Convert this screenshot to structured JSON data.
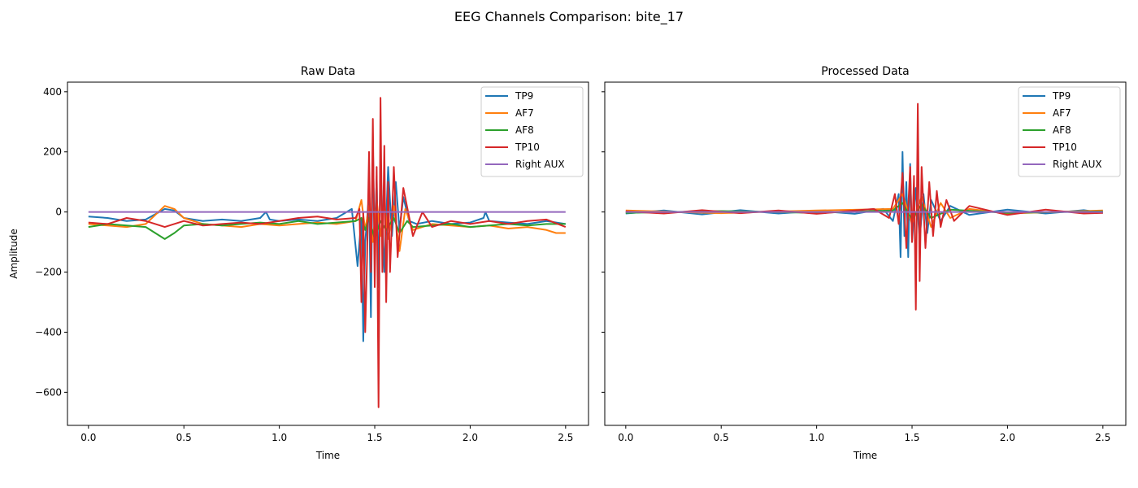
{
  "suptitle": "EEG Channels Comparison: bite_17",
  "colors": {
    "TP9": "#1f77b4",
    "AF7": "#ff7f0e",
    "AF8": "#2ca02c",
    "TP10": "#d62728",
    "Right AUX": "#9467bd"
  },
  "chart_data": [
    {
      "type": "line",
      "title": "Raw Data",
      "xlabel": "Time",
      "ylabel": "Amplitude",
      "xlim": [
        -0.11,
        2.62
      ],
      "ylim": [
        -710,
        432
      ],
      "xticks": [
        0.0,
        0.5,
        1.0,
        1.5,
        2.0,
        2.5
      ],
      "xtick_labels": [
        "0.0",
        "0.5",
        "1.0",
        "1.5",
        "2.0",
        "2.5"
      ],
      "yticks": [
        400,
        200,
        0,
        -200,
        -400,
        -600
      ],
      "ytick_labels": [
        "400",
        "200",
        "0",
        "−200",
        "−400",
        "−600"
      ],
      "legend": [
        "TP9",
        "AF7",
        "AF8",
        "TP10",
        "Right AUX"
      ],
      "legend_loc": "upper right",
      "series": [
        {
          "name": "TP9",
          "color": "#1f77b4",
          "x": [
            0.0,
            0.1,
            0.2,
            0.3,
            0.4,
            0.45,
            0.5,
            0.6,
            0.7,
            0.8,
            0.9,
            0.93,
            0.95,
            1.0,
            1.1,
            1.2,
            1.3,
            1.38,
            1.41,
            1.43,
            1.44,
            1.45,
            1.47,
            1.48,
            1.49,
            1.5,
            1.51,
            1.52,
            1.53,
            1.55,
            1.57,
            1.59,
            1.61,
            1.63,
            1.65,
            1.68,
            1.72,
            1.8,
            1.9,
            2.0,
            2.07,
            2.08,
            2.1,
            2.2,
            2.3,
            2.4,
            2.5
          ],
          "y": [
            -15,
            -20,
            -30,
            -25,
            10,
            5,
            -20,
            -30,
            -25,
            -30,
            -20,
            0,
            -25,
            -30,
            -25,
            -30,
            -20,
            10,
            -180,
            -20,
            -430,
            -100,
            60,
            -350,
            230,
            -100,
            120,
            -250,
            170,
            -200,
            150,
            -80,
            100,
            -60,
            50,
            -30,
            -40,
            -30,
            -40,
            -35,
            -20,
            0,
            -30,
            -35,
            -40,
            -30,
            -40
          ]
        },
        {
          "name": "AF7",
          "color": "#ff7f0e",
          "x": [
            0.0,
            0.1,
            0.2,
            0.3,
            0.35,
            0.4,
            0.45,
            0.5,
            0.6,
            0.7,
            0.8,
            0.9,
            1.0,
            1.1,
            1.2,
            1.3,
            1.4,
            1.43,
            1.45,
            1.47,
            1.49,
            1.51,
            1.53,
            1.55,
            1.57,
            1.6,
            1.63,
            1.66,
            1.7,
            1.75,
            1.8,
            1.9,
            2.0,
            2.1,
            2.2,
            2.3,
            2.4,
            2.45,
            2.5
          ],
          "y": [
            -40,
            -45,
            -50,
            -40,
            -10,
            20,
            10,
            -20,
            -40,
            -45,
            -50,
            -40,
            -45,
            -40,
            -35,
            -40,
            -30,
            40,
            -60,
            20,
            -100,
            40,
            -80,
            30,
            -90,
            20,
            -130,
            10,
            -60,
            -50,
            -40,
            -45,
            -50,
            -45,
            -55,
            -50,
            -60,
            -70,
            -70
          ]
        },
        {
          "name": "AF8",
          "color": "#2ca02c",
          "x": [
            0.0,
            0.1,
            0.2,
            0.3,
            0.35,
            0.4,
            0.45,
            0.5,
            0.6,
            0.7,
            0.8,
            0.9,
            1.0,
            1.1,
            1.2,
            1.3,
            1.4,
            1.43,
            1.45,
            1.47,
            1.5,
            1.53,
            1.56,
            1.6,
            1.63,
            1.67,
            1.7,
            1.8,
            1.9,
            2.0,
            2.1,
            2.2,
            2.3,
            2.4,
            2.5
          ],
          "y": [
            -50,
            -40,
            -45,
            -50,
            -70,
            -90,
            -70,
            -45,
            -40,
            -45,
            -40,
            -35,
            -40,
            -30,
            -40,
            -35,
            -30,
            -20,
            -60,
            -20,
            -90,
            -30,
            -60,
            -20,
            -70,
            -30,
            -50,
            -45,
            -40,
            -50,
            -45,
            -40,
            -45,
            -40,
            -40
          ]
        },
        {
          "name": "TP10",
          "color": "#d62728",
          "x": [
            0.0,
            0.1,
            0.2,
            0.3,
            0.4,
            0.5,
            0.6,
            0.7,
            0.8,
            0.9,
            1.0,
            1.1,
            1.2,
            1.3,
            1.4,
            1.42,
            1.43,
            1.44,
            1.45,
            1.46,
            1.47,
            1.48,
            1.49,
            1.5,
            1.51,
            1.52,
            1.53,
            1.54,
            1.55,
            1.56,
            1.57,
            1.58,
            1.6,
            1.62,
            1.65,
            1.7,
            1.75,
            1.8,
            1.9,
            2.0,
            2.1,
            2.2,
            2.3,
            2.4,
            2.5
          ],
          "y": [
            -35,
            -40,
            -20,
            -30,
            -50,
            -30,
            -45,
            -40,
            -35,
            -40,
            -30,
            -20,
            -15,
            -25,
            -20,
            10,
            -300,
            0,
            -400,
            -150,
            200,
            -200,
            310,
            -250,
            150,
            -650,
            380,
            -200,
            220,
            -300,
            100,
            -200,
            150,
            -150,
            80,
            -80,
            0,
            -50,
            -30,
            -40,
            -30,
            -40,
            -30,
            -25,
            -50
          ]
        },
        {
          "name": "Right AUX",
          "color": "#9467bd",
          "x": [
            0.0,
            2.5
          ],
          "y": [
            0,
            0
          ]
        }
      ]
    },
    {
      "type": "line",
      "title": "Processed Data",
      "xlabel": "Time",
      "ylabel": "",
      "xlim": [
        -0.11,
        2.62
      ],
      "ylim": [
        -710,
        432
      ],
      "xticks": [
        0.0,
        0.5,
        1.0,
        1.5,
        2.0,
        2.5
      ],
      "xtick_labels": [
        "0.0",
        "0.5",
        "1.0",
        "1.5",
        "2.0",
        "2.5"
      ],
      "yticks": [
        400,
        200,
        0,
        -200,
        -400,
        -600
      ],
      "ytick_labels": [
        "",
        "",
        "",
        "",
        "",
        ""
      ],
      "legend": [
        "TP9",
        "AF7",
        "AF8",
        "TP10",
        "Right AUX"
      ],
      "legend_loc": "upper right",
      "series": [
        {
          "name": "TP9",
          "color": "#1f77b4",
          "x": [
            0.0,
            0.2,
            0.4,
            0.6,
            0.8,
            1.0,
            1.2,
            1.35,
            1.4,
            1.43,
            1.44,
            1.45,
            1.46,
            1.47,
            1.48,
            1.49,
            1.5,
            1.52,
            1.54,
            1.56,
            1.58,
            1.6,
            1.65,
            1.7,
            1.8,
            2.0,
            2.2,
            2.4,
            2.5
          ],
          "y": [
            -5,
            5,
            -8,
            6,
            -5,
            4,
            -6,
            10,
            -30,
            60,
            -150,
            200,
            -80,
            100,
            -150,
            160,
            -100,
            80,
            -90,
            60,
            -70,
            40,
            -30,
            20,
            -10,
            8,
            -5,
            6,
            -3
          ]
        },
        {
          "name": "AF7",
          "color": "#ff7f0e",
          "x": [
            0.0,
            0.5,
            1.0,
            1.4,
            1.45,
            1.5,
            1.55,
            1.6,
            1.65,
            1.7,
            1.8,
            2.0,
            2.5
          ],
          "y": [
            5,
            -4,
            5,
            10,
            60,
            -40,
            50,
            -50,
            30,
            -20,
            10,
            -5,
            5
          ]
        },
        {
          "name": "AF8",
          "color": "#2ca02c",
          "x": [
            0.0,
            0.5,
            1.0,
            1.4,
            1.45,
            1.5,
            1.55,
            1.6,
            1.7,
            2.0,
            2.5
          ],
          "y": [
            -3,
            3,
            -3,
            5,
            30,
            -25,
            25,
            -20,
            8,
            -3,
            2
          ]
        },
        {
          "name": "TP10",
          "color": "#d62728",
          "x": [
            0.0,
            0.2,
            0.4,
            0.6,
            0.8,
            1.0,
            1.2,
            1.3,
            1.38,
            1.41,
            1.43,
            1.45,
            1.47,
            1.49,
            1.5,
            1.51,
            1.52,
            1.53,
            1.54,
            1.55,
            1.57,
            1.59,
            1.61,
            1.63,
            1.65,
            1.68,
            1.72,
            1.8,
            2.0,
            2.2,
            2.4,
            2.5
          ],
          "y": [
            2,
            -5,
            6,
            -4,
            5,
            -6,
            5,
            10,
            -20,
            60,
            -40,
            130,
            -120,
            150,
            -100,
            120,
            -325,
            360,
            -230,
            150,
            -120,
            100,
            -80,
            70,
            -50,
            40,
            -30,
            20,
            -10,
            8,
            -5,
            -3
          ]
        },
        {
          "name": "Right AUX",
          "color": "#9467bd",
          "x": [
            0.0,
            2.5
          ],
          "y": [
            0,
            0
          ]
        }
      ]
    }
  ]
}
